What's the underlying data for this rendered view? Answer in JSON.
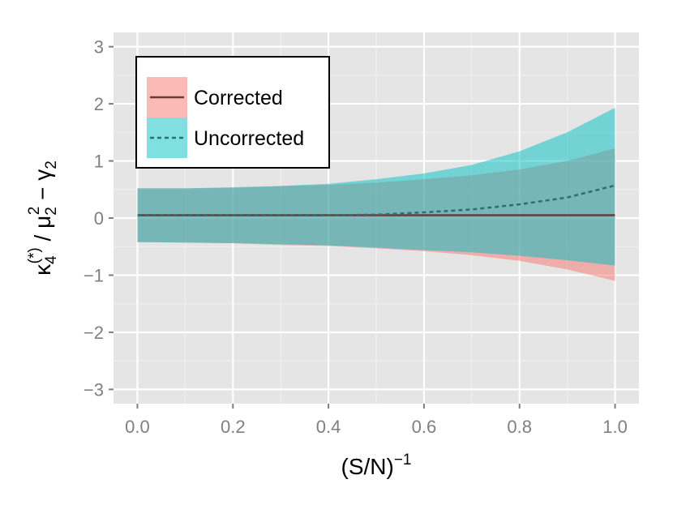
{
  "chart_data": {
    "type": "area",
    "xlabel": "(S/N)",
    "xlabel_superscript": "−1",
    "ylabel": {
      "base": "κ",
      "base_sub": "4",
      "base_sup": "(*)",
      "slash": " / ",
      "mu": "μ",
      "mu_sub": "2",
      "mu_sup": "2",
      "minus": " − ",
      "gamma": "γ",
      "gamma_sub": "2"
    },
    "xlim": [
      -0.05,
      1.05
    ],
    "ylim": [
      -3.25,
      3.25
    ],
    "x_ticks": [
      {
        "value": 0.0,
        "label": "0.0"
      },
      {
        "value": 0.2,
        "label": "0.2"
      },
      {
        "value": 0.4,
        "label": "0.4"
      },
      {
        "value": 0.6,
        "label": "0.6"
      },
      {
        "value": 0.8,
        "label": "0.8"
      },
      {
        "value": 1.0,
        "label": "1.0"
      }
    ],
    "y_ticks": [
      {
        "value": 3,
        "label": "3"
      },
      {
        "value": 2,
        "label": "2"
      },
      {
        "value": 1,
        "label": "1"
      },
      {
        "value": 0,
        "label": "0"
      },
      {
        "value": -1,
        "label": "−1"
      },
      {
        "value": -2,
        "label": "−2"
      },
      {
        "value": -3,
        "label": "−3"
      }
    ],
    "grid": true,
    "legend_position": "top-left",
    "series": [
      {
        "name": "Corrected",
        "line_style": "solid",
        "line_color": "#6b3a36",
        "fill_color": "#f8766d",
        "x": [
          0.0,
          0.1,
          0.2,
          0.3,
          0.4,
          0.5,
          0.6,
          0.7,
          0.8,
          0.9,
          1.0
        ],
        "y": [
          0.05,
          0.05,
          0.05,
          0.05,
          0.05,
          0.05,
          0.05,
          0.05,
          0.05,
          0.05,
          0.05
        ],
        "lower": [
          -0.42,
          -0.43,
          -0.44,
          -0.47,
          -0.49,
          -0.53,
          -0.58,
          -0.65,
          -0.75,
          -0.9,
          -1.1
        ],
        "upper": [
          0.52,
          0.52,
          0.53,
          0.56,
          0.58,
          0.62,
          0.68,
          0.75,
          0.85,
          1.0,
          1.22
        ]
      },
      {
        "name": "Uncorrected",
        "line_style": "dashed",
        "line_color": "#2f6e6e",
        "fill_color": "#00bfc4",
        "x": [
          0.0,
          0.1,
          0.2,
          0.3,
          0.4,
          0.5,
          0.6,
          0.7,
          0.8,
          0.9,
          1.0
        ],
        "y": [
          0.05,
          0.05,
          0.05,
          0.05,
          0.05,
          0.06,
          0.1,
          0.15,
          0.24,
          0.36,
          0.57
        ],
        "lower": [
          -0.42,
          -0.43,
          -0.44,
          -0.46,
          -0.48,
          -0.52,
          -0.56,
          -0.6,
          -0.66,
          -0.74,
          -0.83
        ],
        "upper": [
          0.52,
          0.52,
          0.54,
          0.56,
          0.6,
          0.68,
          0.78,
          0.93,
          1.17,
          1.5,
          1.93
        ]
      }
    ]
  }
}
